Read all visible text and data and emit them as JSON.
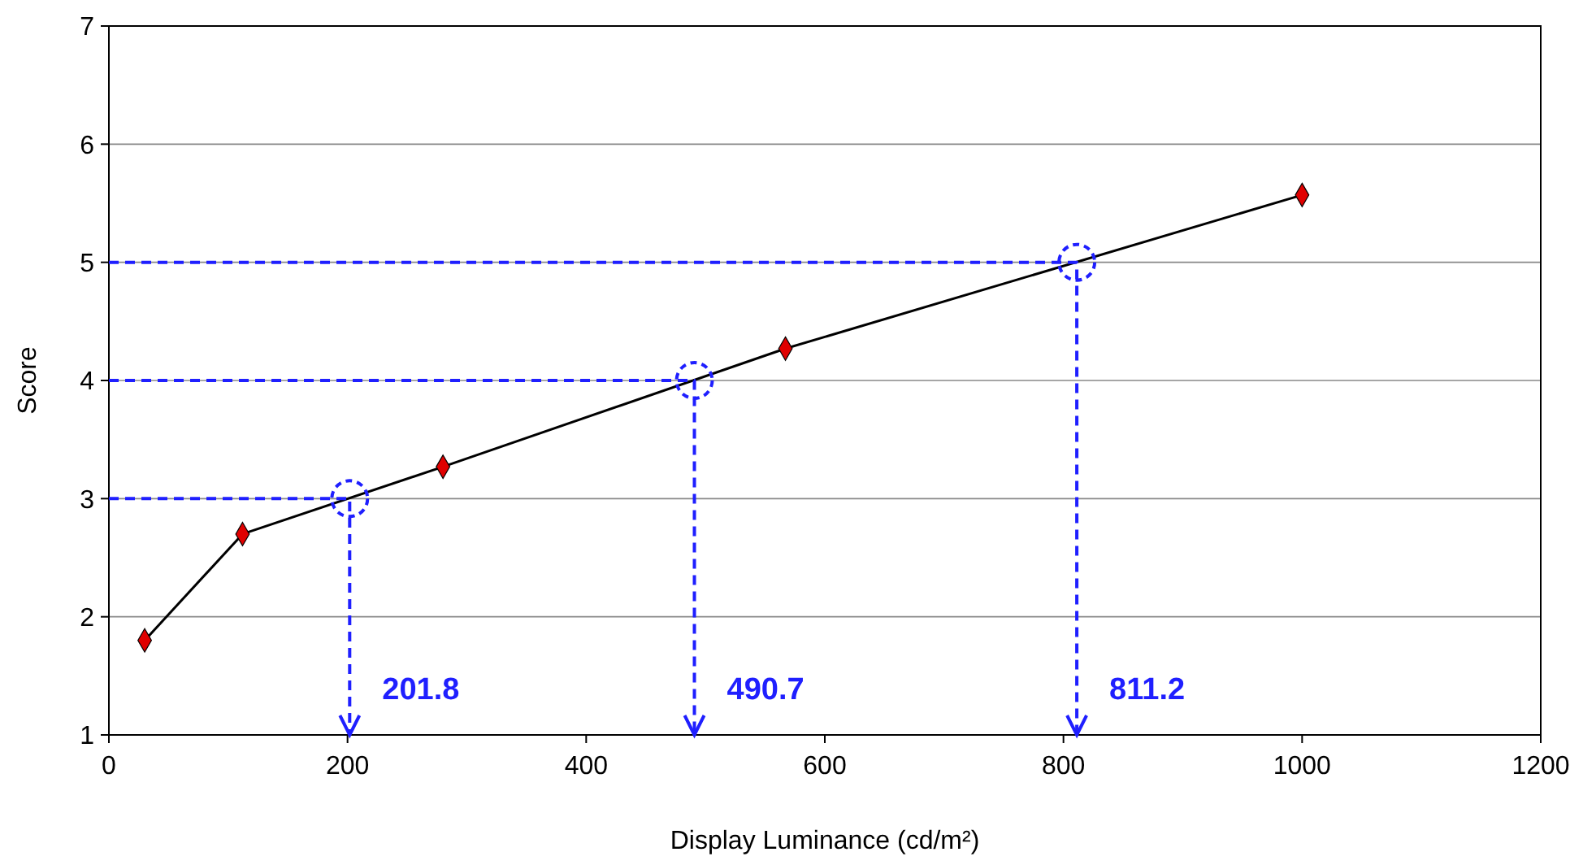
{
  "chart_data": {
    "type": "line",
    "xlabel": "Display Luminance (cd/m²)",
    "ylabel": "Score",
    "x": [
      30,
      112,
      280,
      567,
      1000
    ],
    "series": [
      {
        "color": "#000000",
        "values": [
          1.8,
          2.7,
          3.27,
          4.27,
          5.57
        ]
      },
      {
        "color": "#1f1fff",
        "x": [
          0,
          201.8,
          201.8
        ],
        "values": [
          3,
          3,
          1
        ],
        "marker": "none",
        "line_style": "dashed"
      },
      {
        "color": "#1f1fff",
        "x": [
          0,
          490.7,
          490.7
        ],
        "values": [
          4,
          4,
          1
        ],
        "marker": "none",
        "line_style": "dashed"
      },
      {
        "color": "#1f1fff",
        "x": [
          0,
          811.2,
          811.2
        ],
        "values": [
          5,
          5,
          1
        ],
        "marker": "none",
        "line_style": "dashed"
      }
    ],
    "marker": "diamond",
    "line_style": "solid",
    "grid": "y",
    "xlim": [
      0,
      1200
    ],
    "xticks": [
      0,
      200,
      400,
      600,
      800,
      1000,
      1200
    ],
    "ylim": [
      1,
      7
    ],
    "yticks": [
      1,
      2,
      3,
      4,
      5,
      6,
      7
    ],
    "annotations": [
      {
        "text": "201.8",
        "x": 201.8,
        "y": 1
      },
      {
        "text": "490.7",
        "x": 490.7,
        "y": 1
      },
      {
        "text": "811.2",
        "x": 811.2,
        "y": 1
      }
    ]
  }
}
